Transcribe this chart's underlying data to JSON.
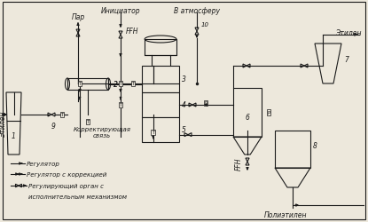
{
  "bg_color": "#ede8dc",
  "line_color": "#1a1a1a",
  "legend": [
    {
      "label": "Регулятор",
      "style": "single"
    },
    {
      "label": "Регулятор с коррекцией",
      "style": "double"
    },
    {
      "label": "Регулирующий орган с",
      "style": "bowtie"
    },
    {
      "label": "исполнительным механизмом",
      "style": "none"
    }
  ],
  "par": "Пар",
  "iniciator": "Инициатор",
  "ffh": "FFH",
  "v_atm": "В атмосферу",
  "etilen_l": "Этилен",
  "etilen_r": "Этилен",
  "polietilen": "Полиэтилен",
  "korrekt": "Корректирующая\nсвязь"
}
